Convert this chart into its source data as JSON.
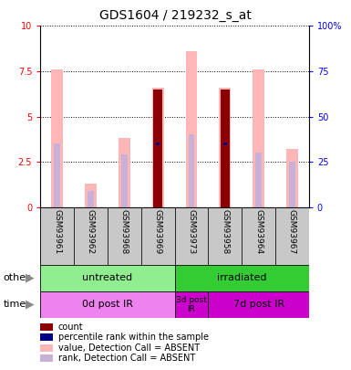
{
  "title": "GDS1604 / 219232_s_at",
  "samples": [
    "GSM93961",
    "GSM93962",
    "GSM93968",
    "GSM93969",
    "GSM93973",
    "GSM93958",
    "GSM93964",
    "GSM93967"
  ],
  "value_absent": [
    7.6,
    1.3,
    3.8,
    6.6,
    8.6,
    6.6,
    7.6,
    3.2
  ],
  "rank_absent": [
    3.5,
    0.9,
    2.9,
    3.5,
    4.0,
    3.5,
    3.0,
    2.5
  ],
  "count": [
    0.0,
    0.0,
    0.0,
    6.5,
    0.0,
    6.5,
    0.0,
    0.0
  ],
  "percentile_rank": [
    0.0,
    0.0,
    0.0,
    3.5,
    0.0,
    3.5,
    0.0,
    0.0
  ],
  "has_count": [
    false,
    false,
    false,
    true,
    false,
    true,
    false,
    false
  ],
  "ylim_left": [
    0,
    10
  ],
  "ylim_right": [
    0,
    100
  ],
  "yticks_left": [
    0,
    2.5,
    5,
    7.5,
    10
  ],
  "yticks_right": [
    0,
    25,
    50,
    75,
    100
  ],
  "color_value_absent": "#FFB6B6",
  "color_rank_absent": "#C8B0D8",
  "color_count": "#8B0000",
  "color_percentile": "#00008B",
  "group_other": [
    {
      "label": "untreated",
      "start": 0,
      "end": 4,
      "color": "#90EE90"
    },
    {
      "label": "irradiated",
      "start": 4,
      "end": 8,
      "color": "#33CC33"
    }
  ],
  "group_time": [
    {
      "label": "0d post IR",
      "start": 0,
      "end": 4,
      "color": "#EE82EE"
    },
    {
      "label": "3d post\nIR",
      "start": 4,
      "end": 5,
      "color": "#CC00CC"
    },
    {
      "label": "7d post IR",
      "start": 5,
      "end": 8,
      "color": "#CC00CC"
    }
  ],
  "legend_items": [
    {
      "label": "count",
      "color": "#8B0000"
    },
    {
      "label": "percentile rank within the sample",
      "color": "#00008B"
    },
    {
      "label": "value, Detection Call = ABSENT",
      "color": "#FFB6B6"
    },
    {
      "label": "rank, Detection Call = ABSENT",
      "color": "#C8B0D8"
    }
  ],
  "tick_fontsize": 7,
  "sample_fontsize": 6.5,
  "title_fontsize": 10
}
